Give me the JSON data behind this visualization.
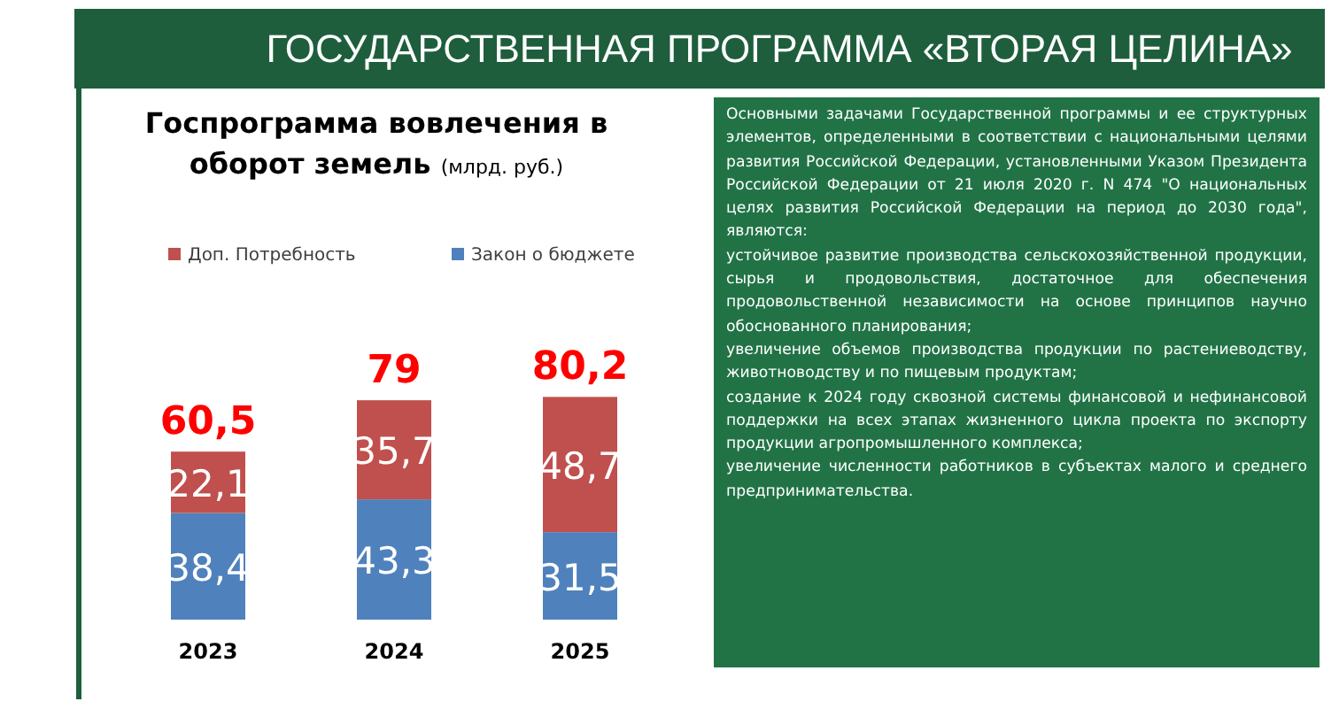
{
  "chart_data": [
    {
      "type": "bar",
      "title": "Госпрограмма вовлечения в оборот земель",
      "subtitle": "(млрд. руб.)",
      "categories": [
        "2023",
        "2024",
        "2025"
      ],
      "stacked": true,
      "legend": "top",
      "series": [
        {
          "name": "Закон о бюджете",
          "color": "#4f81bd",
          "values": [
            38.4,
            43.3,
            31.5
          ],
          "value_labels": [
            "38,4",
            "43,3",
            "31,5"
          ]
        },
        {
          "name": "Доп. Потребность",
          "color": "#c0504d",
          "values": [
            22.1,
            35.7,
            48.7
          ],
          "value_labels": [
            "22,1",
            "35,7",
            "48,7"
          ]
        }
      ],
      "totals": [
        "60,5",
        "79",
        "80,2"
      ]
    },
    {
      "type": "other",
      "title": "ГОСУДАРСТВЕННАЯ ПРОГРАММА «ВТОРАЯ ЦЕЛИНА»",
      "annotations": [
        "Основными задачами Государственной программы и ее структурных элементов, определенными в соответствии с национальными целями развития Российской Федерации, установленными Указом Президента Российской Федерации от 21 июля 2020 г. N 474 \"О национальных целях развития Российской Федерации на период до 2030 года\", являются:",
        "устойчивое развитие производства сельскохозяйственной продукции, сырья и продовольствия, достаточное для обеспечения продовольственной независимости на основе принципов научно обоснованного планирования;",
        "увеличение объемов производства продукции по растениеводству, животноводству и по пищевым продуктам;",
        "создание к 2024 году сквозной системы финансовой и нефинансовой поддержки на всех этапах жизненного цикла проекта по экспорту продукции агропромышленного комплекса;",
        "увеличение численности работников в субъектах малого и среднего предпринимательства."
      ]
    }
  ]
}
